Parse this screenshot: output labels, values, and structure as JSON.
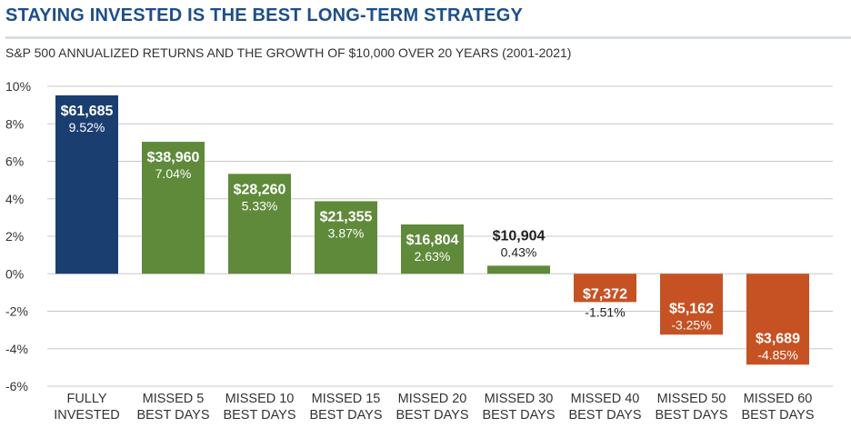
{
  "header": {
    "title": "STAYING INVESTED IS THE BEST LONG-TERM STRATEGY",
    "subtitle": "S&P 500 ANNUALIZED RETURNS AND THE GROWTH OF $10,000 OVER 20 YEARS (2001-2021)"
  },
  "colors": {
    "title": "#1d4e89",
    "fully_invested": "#1a3e70",
    "positive": "#5f8a3a",
    "negative": "#c65224",
    "grid": "#c8c8c8"
  },
  "chart_data": {
    "type": "bar",
    "title": "STAYING INVESTED IS THE BEST LONG-TERM STRATEGY",
    "subtitle": "S&P 500 ANNUALIZED RETURNS AND THE GROWTH OF $10,000 OVER 20 YEARS (2001-2021)",
    "xlabel": "",
    "ylabel": "",
    "ylim": [
      -6,
      10
    ],
    "yticks": [
      10,
      8,
      6,
      4,
      2,
      0,
      -2,
      -4,
      -6
    ],
    "ytick_labels": [
      "10%",
      "8%",
      "6%",
      "4%",
      "2%",
      "0%",
      "-2%",
      "-4%",
      "-6%"
    ],
    "categories": [
      [
        "FULLY",
        "INVESTED"
      ],
      [
        "MISSED 5",
        "BEST DAYS"
      ],
      [
        "MISSED 10",
        "BEST DAYS"
      ],
      [
        "MISSED 15",
        "BEST DAYS"
      ],
      [
        "MISSED 20",
        "BEST DAYS"
      ],
      [
        "MISSED 30",
        "BEST DAYS"
      ],
      [
        "MISSED 40",
        "BEST DAYS"
      ],
      [
        "MISSED 50",
        "BEST DAYS"
      ],
      [
        "MISSED 60",
        "BEST DAYS"
      ]
    ],
    "values": [
      9.52,
      7.04,
      5.33,
      3.87,
      2.63,
      0.43,
      -1.51,
      -3.25,
      -4.85
    ],
    "value_labels": [
      "9.52%",
      "7.04%",
      "5.33%",
      "3.87%",
      "2.63%",
      "0.43%",
      "-1.51%",
      "-3.25%",
      "-4.85%"
    ],
    "growth_labels": [
      "$61,685",
      "$38,960",
      "$28,260",
      "$21,355",
      "$16,804",
      "$10,904",
      "$7,372",
      "$5,162",
      "$3,689"
    ]
  }
}
